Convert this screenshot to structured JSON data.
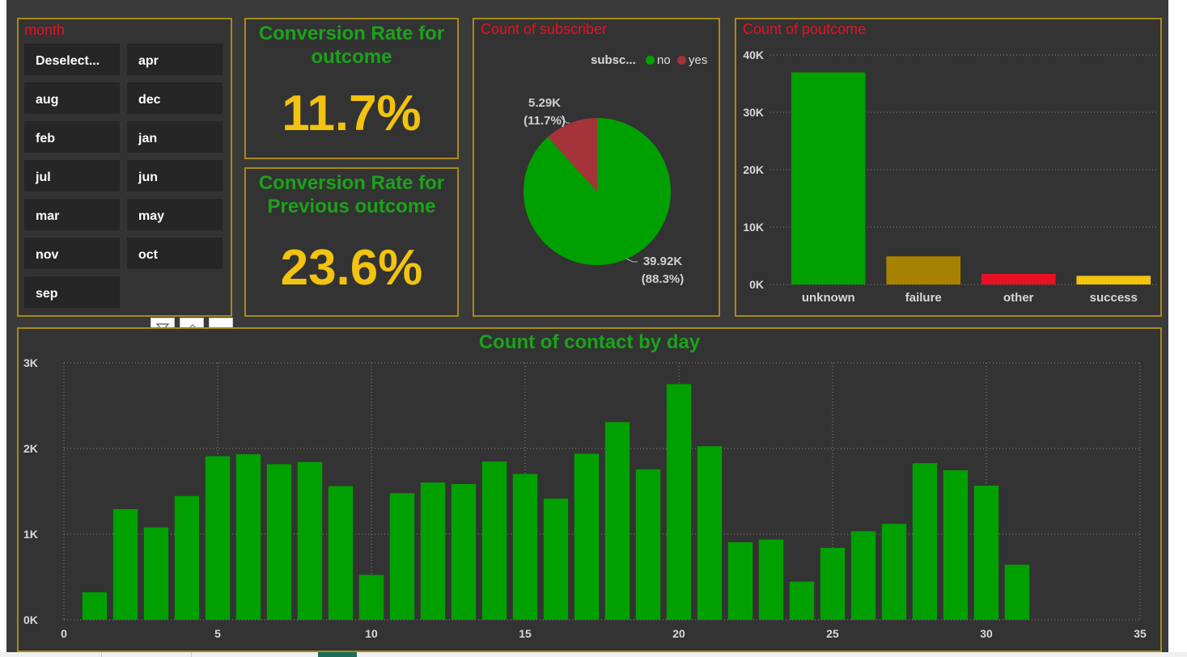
{
  "month_slicer": {
    "title": "month",
    "items": [
      "Deselect...",
      "apr",
      "aug",
      "dec",
      "feb",
      "jan",
      "jul",
      "jun",
      "mar",
      "may",
      "nov",
      "oct",
      "sep"
    ]
  },
  "kpi_outcome": {
    "title_line1": "Conversion Rate for",
    "title_line2": "outcome",
    "value": "11.7%"
  },
  "kpi_previous": {
    "title_line1": "Conversion Rate for",
    "title_line2": "Previous outcome",
    "value": "23.6%"
  },
  "visual_header": {
    "icons": [
      "filter-icon",
      "eraser-icon",
      "more-options-icon"
    ]
  },
  "colors": {
    "green": "#00a000",
    "red_title": "#e81123",
    "gold_value": "#f2c30f",
    "border": "#a88a14",
    "pie_yes": "#a4343a"
  },
  "chart_data": [
    {
      "type": "pie",
      "title": "Count of subscriber",
      "legend_title": "subsc...",
      "legend_position": "top-right",
      "slices": [
        {
          "name": "no",
          "value": 39.92,
          "label": "39.92K",
          "pct_label": "(88.3%)",
          "color": "#00a000"
        },
        {
          "name": "yes",
          "value": 5.29,
          "label": "5.29K",
          "pct_label": "(11.7%)",
          "color": "#a4343a"
        }
      ]
    },
    {
      "type": "bar",
      "title": "Count of poutcome",
      "categories": [
        "unknown",
        "failure",
        "other",
        "success"
      ],
      "values": [
        36959,
        4901,
        1840,
        1511
      ],
      "colors": [
        "#00a000",
        "#a68200",
        "#e81123",
        "#f2c30f"
      ],
      "ylim": [
        0,
        40000
      ],
      "yticks": [
        "0K",
        "10K",
        "20K",
        "30K",
        "40K"
      ],
      "grid": true
    },
    {
      "type": "bar",
      "title": "Count of contact by day",
      "x": [
        1,
        2,
        3,
        4,
        5,
        6,
        7,
        8,
        9,
        10,
        11,
        12,
        13,
        14,
        15,
        16,
        17,
        18,
        19,
        20,
        21,
        22,
        23,
        24,
        25,
        26,
        27,
        28,
        29,
        30,
        31
      ],
      "values": [
        322,
        1293,
        1079,
        1445,
        1910,
        1932,
        1817,
        1842,
        1561,
        524,
        1479,
        1603,
        1585,
        1848,
        1703,
        1415,
        1939,
        2308,
        1757,
        2752,
        2026,
        905,
        938,
        447,
        840,
        1035,
        1121,
        1829,
        1746,
        1566,
        643
      ],
      "color": "#00a000",
      "xlim": [
        0,
        35
      ],
      "xticks": [
        "0",
        "5",
        "10",
        "15",
        "20",
        "25",
        "30",
        "35"
      ],
      "ylim": [
        0,
        3000
      ],
      "yticks": [
        "0K",
        "1K",
        "2K",
        "3K"
      ],
      "grid": true
    }
  ]
}
